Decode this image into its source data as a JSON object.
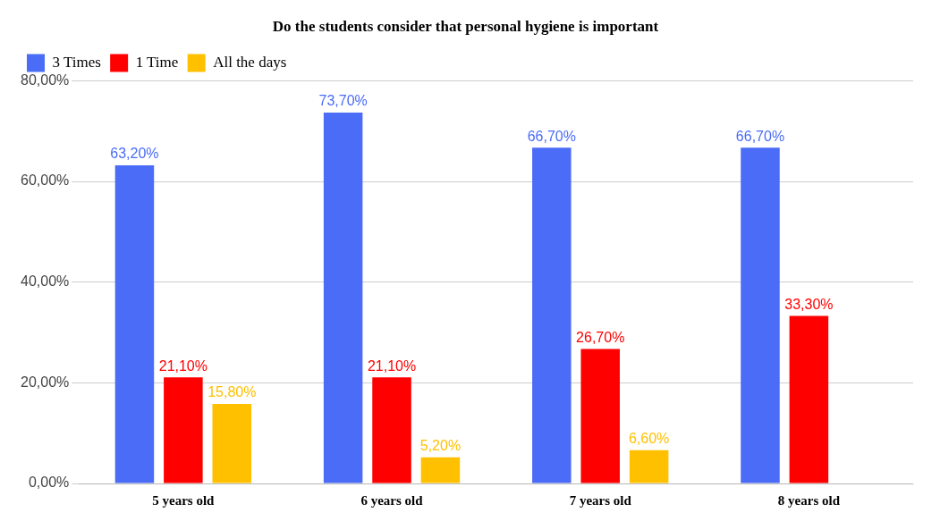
{
  "chart_data": {
    "type": "bar",
    "title": "Do the students consider that personal hygiene is important",
    "categories": [
      "5 years old",
      "6 years old",
      "7 years old",
      "8 years old"
    ],
    "series": [
      {
        "name": "3 Times",
        "color": "#4a6cf7",
        "values": [
          63.2,
          73.7,
          66.7,
          66.7
        ],
        "value_labels": [
          "63,20%",
          "73,70%",
          "66,70%",
          "66,70%"
        ]
      },
      {
        "name": "1 Time",
        "color": "#ff0000",
        "values": [
          21.1,
          21.1,
          26.7,
          33.3
        ],
        "value_labels": [
          "21,10%",
          "21,10%",
          "26,70%",
          "33,30%"
        ]
      },
      {
        "name": "All the days",
        "color": "#ffc000",
        "values": [
          15.8,
          5.2,
          6.6,
          null
        ],
        "value_labels": [
          "15,80%",
          "5,20%",
          "6,60%",
          null
        ]
      }
    ],
    "ylim": [
      0,
      80
    ],
    "yticks": [
      {
        "value": 0,
        "label": "0,00%"
      },
      {
        "value": 20,
        "label": "20,00%"
      },
      {
        "value": 40,
        "label": "40,00%"
      },
      {
        "value": 60,
        "label": "60,00%"
      },
      {
        "value": 80,
        "label": "80,00%"
      }
    ],
    "grid": "y",
    "legend": "top left"
  }
}
